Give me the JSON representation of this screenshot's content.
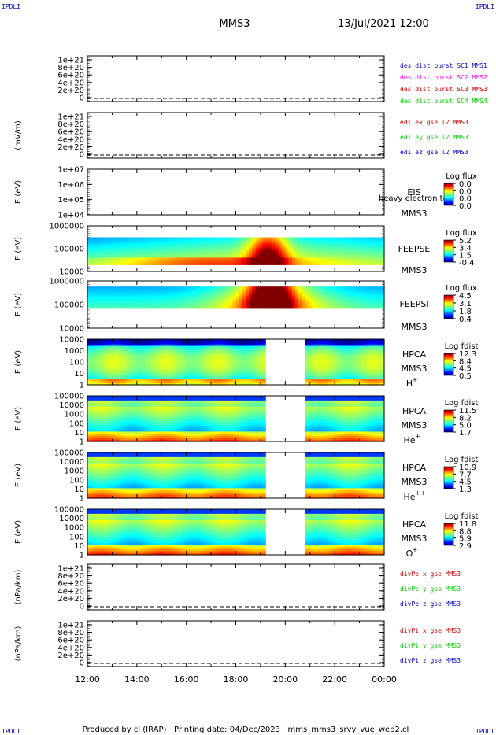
{
  "header": {
    "corner_label": "IPDLI",
    "title": "MMS3",
    "datetime": "13/Jul/2021 12:00"
  },
  "footer": {
    "text": "Produced by cl (IRAP)   Printing date: 04/Dec/2023   mms_mms3_srvy_vue_web2.cl"
  },
  "colors": {
    "red": "#ff0000",
    "magenta": "#ff00ff",
    "green": "#00cc00",
    "blue": "#0000cc",
    "dark_red": "#cc0000"
  },
  "chart_data": {
    "type": "heatmap",
    "x_axis": {
      "ticks": [
        "12:00",
        "14:00",
        "16:00",
        "18:00",
        "20:00",
        "22:00",
        "00:00"
      ],
      "range_hours": [
        12,
        24
      ]
    },
    "panels": [
      {
        "id": "dist",
        "kind": "line",
        "ylabel": "",
        "yticks": [
          "1e+21",
          "8e+20",
          "6e+20",
          "4e+20",
          "2e+20",
          "0"
        ],
        "legend": [
          {
            "text": "des dist burst SC1 MMS1",
            "color": "#0000cc"
          },
          {
            "text": "des dist burst SC2 MMS2",
            "color": "#ff00ff"
          },
          {
            "text": "des dist burst SC3 MMS3",
            "color": "#cc0000"
          },
          {
            "text": "des dist burst SC4 MMS4",
            "color": "#00cc00"
          }
        ]
      },
      {
        "id": "edi",
        "kind": "line",
        "ylabel": "(mV/m)",
        "yticks": [
          "1e+21",
          "8e+20",
          "6e+20",
          "4e+20",
          "2e+20",
          "0"
        ],
        "legend": [
          {
            "text": "edi ex gse l2 MMS3",
            "color": "#cc0000"
          },
          {
            "text": "edi ey gse l2 MMS3",
            "color": "#00cc00"
          },
          {
            "text": "edi ez gse l2 MMS3",
            "color": "#0000cc"
          }
        ]
      },
      {
        "id": "eis",
        "kind": "spectrogram-empty",
        "ylabel": "E (eV)",
        "yticks": [
          "1e+07",
          "1e+06",
          "1e+05",
          "1e+04"
        ],
        "instrument": [
          "EIS",
          "MMS3"
        ],
        "overlay_text": "heavy electron tof",
        "colorbar": {
          "title": "Log flux",
          "labels": [
            "0.0",
            "0.0",
            "0.0",
            "0.0"
          ]
        }
      },
      {
        "id": "feepse",
        "kind": "spectrogram",
        "ylabel": "E (eV)",
        "yticks": [
          "1000000",
          "100000",
          "10000"
        ],
        "instrument": [
          "FEEPSE",
          "MMS3"
        ],
        "colorbar": {
          "title": "Log flux",
          "labels": [
            "5.2",
            "3.4",
            "1.5",
            "-0.4"
          ]
        },
        "data_window_hours": [
          12,
          24
        ],
        "data_energy_fraction": [
          0.15,
          0.75
        ],
        "gap_hours": null
      },
      {
        "id": "feepsi",
        "kind": "spectrogram",
        "ylabel": "E (eV)",
        "yticks": [
          "1000000",
          "100000",
          "10000"
        ],
        "instrument": [
          "FEEPSI",
          "MMS3"
        ],
        "colorbar": {
          "title": "Log flux",
          "labels": [
            "4.5",
            "3.1",
            "1.8",
            "0.4"
          ]
        },
        "data_window_hours": [
          12,
          24
        ],
        "data_energy_fraction": [
          0.42,
          0.88
        ],
        "gap_hours": null
      },
      {
        "id": "hpca_h",
        "kind": "spectrogram",
        "ylabel": "E (eV)",
        "yticks": [
          "10000",
          "1000",
          "100",
          "10",
          "1"
        ],
        "instrument": [
          "HPCA",
          "MMS3"
        ],
        "species": "H",
        "charge": "+",
        "colorbar": {
          "title": "Log fdist",
          "labels": [
            "12.3",
            "8.4",
            "4.5",
            "0.5"
          ]
        },
        "data_window_hours": [
          12,
          24
        ],
        "data_energy_fraction": [
          0.0,
          1.0
        ],
        "gap_hours": [
          19.25,
          20.75
        ]
      },
      {
        "id": "hpca_he1",
        "kind": "spectrogram",
        "ylabel": "E (eV)",
        "yticks": [
          "100000",
          "10000",
          "1000",
          "100",
          "10",
          "1"
        ],
        "instrument": [
          "HPCA",
          "MMS3"
        ],
        "species": "He",
        "charge": "+",
        "colorbar": {
          "title": "Log fdist",
          "labels": [
            "11.5",
            "8.2",
            "5.0",
            "1.7"
          ]
        },
        "data_window_hours": [
          12,
          24
        ],
        "data_energy_fraction": [
          0.0,
          1.0
        ],
        "gap_hours": [
          19.25,
          20.75
        ]
      },
      {
        "id": "hpca_he2",
        "kind": "spectrogram",
        "ylabel": "E (eV)",
        "yticks": [
          "100000",
          "10000",
          "1000",
          "100",
          "10",
          "1"
        ],
        "instrument": [
          "HPCA",
          "MMS3"
        ],
        "species": "He",
        "charge": "++",
        "colorbar": {
          "title": "Log fdist",
          "labels": [
            "10.9",
            "7.7",
            "4.5",
            "1.3"
          ]
        },
        "data_window_hours": [
          12,
          24
        ],
        "data_energy_fraction": [
          0.0,
          1.0
        ],
        "gap_hours": [
          19.25,
          20.75
        ]
      },
      {
        "id": "hpca_o",
        "kind": "spectrogram",
        "ylabel": "E (eV)",
        "yticks": [
          "100000",
          "10000",
          "1000",
          "100",
          "10",
          "1"
        ],
        "instrument": [
          "HPCA",
          "MMS3"
        ],
        "species": "O",
        "charge": "+",
        "colorbar": {
          "title": "Log fdist",
          "labels": [
            "11.8",
            "8.8",
            "5.9",
            "2.9"
          ]
        },
        "data_window_hours": [
          12,
          24
        ],
        "data_energy_fraction": [
          0.0,
          1.0
        ],
        "gap_hours": [
          19.25,
          20.75
        ]
      },
      {
        "id": "divpe",
        "kind": "line",
        "ylabel": "(nPa/km)",
        "yticks": [
          "1e+21",
          "8e+20",
          "6e+20",
          "4e+20",
          "2e+20",
          "0"
        ],
        "legend": [
          {
            "text": "divPe x gse MMS3",
            "color": "#cc0000"
          },
          {
            "text": "divPe y gse MMS3",
            "color": "#00cc00"
          },
          {
            "text": "divPe z gse MMS3",
            "color": "#0000cc"
          }
        ]
      },
      {
        "id": "divpi",
        "kind": "line",
        "ylabel": "(nPa/km)",
        "yticks": [
          "1e+21",
          "8e+20",
          "6e+20",
          "4e+20",
          "2e+20",
          "0"
        ],
        "legend": [
          {
            "text": "divPi x gse MMS3",
            "color": "#cc0000"
          },
          {
            "text": "divPi y gse MMS3",
            "color": "#00cc00"
          },
          {
            "text": "divPi z gse MMS3",
            "color": "#0000cc"
          }
        ]
      }
    ]
  }
}
